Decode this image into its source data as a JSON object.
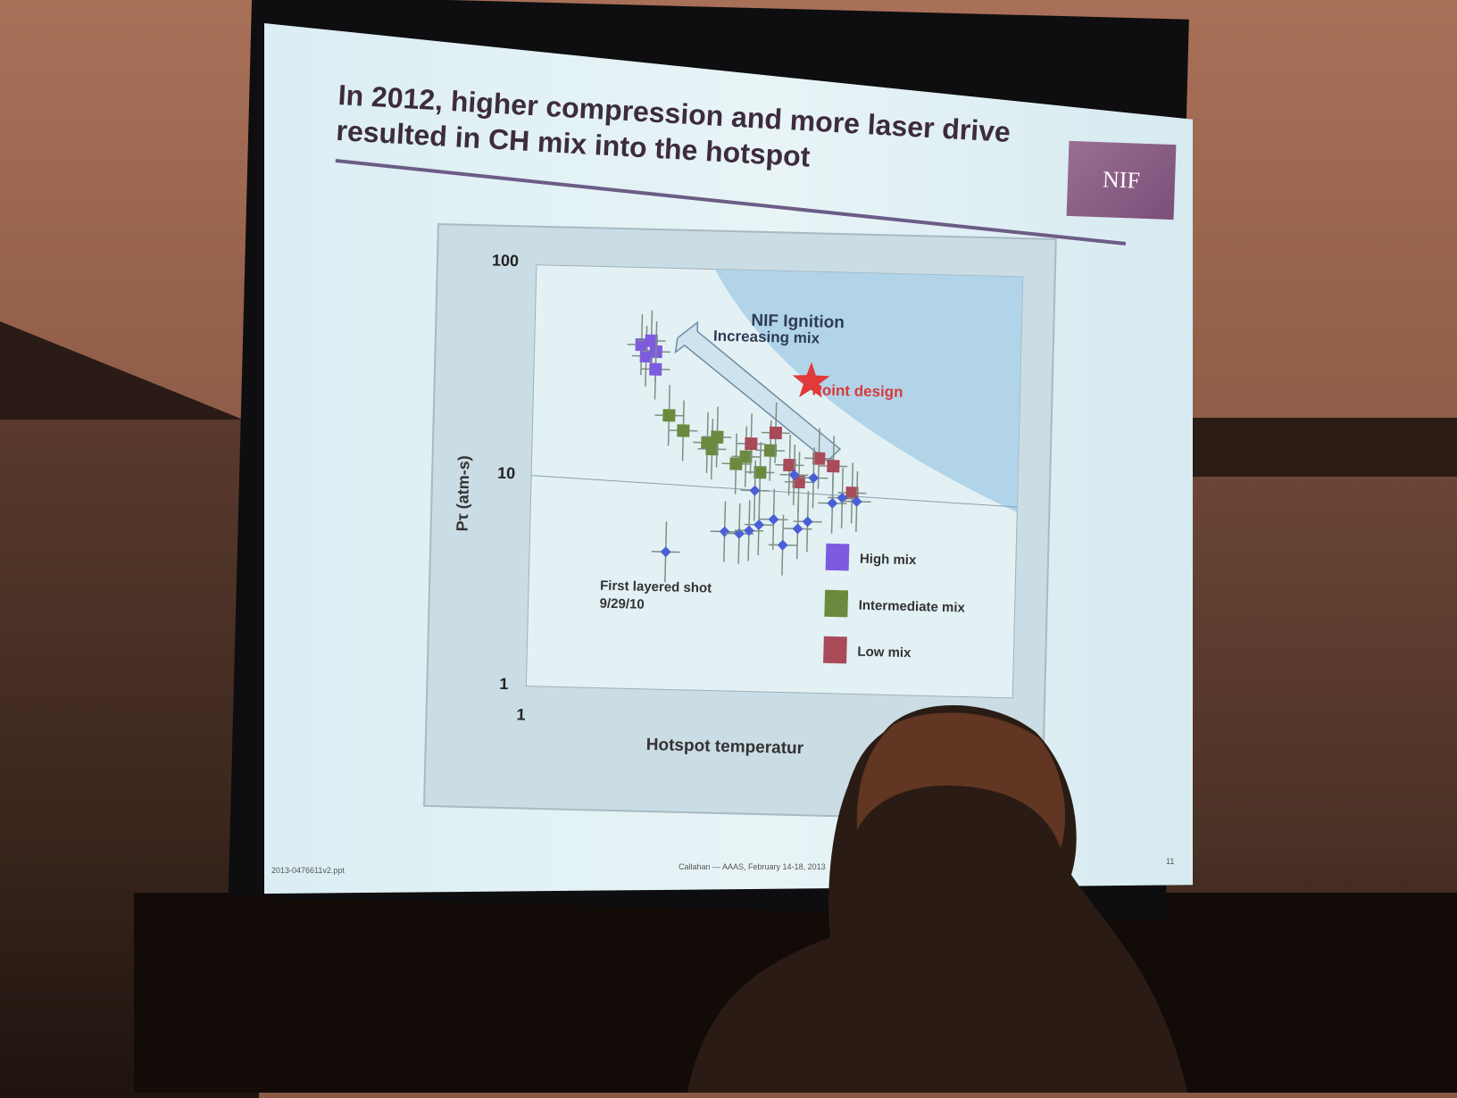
{
  "slide": {
    "title": "In 2012, higher compression and more laser drive resulted in CH mix into the hotspot",
    "logo_text": "NIF",
    "footer_left": "2013-0476611v2.ppt",
    "footer_center": "Callahan — AAAS, February 14-18, 2013",
    "footer_right": "11"
  },
  "chart_data": {
    "type": "scatter",
    "title": "",
    "xlabel": "Hotspot temperatur",
    "ylabel": "Pτ (atm-s)",
    "y_scale": "log",
    "ylim": [
      1,
      100
    ],
    "y_ticks": [
      "100",
      "10",
      "1"
    ],
    "x_ticks": [
      "1"
    ],
    "grid": "horizontal line at 10",
    "annotations": {
      "region": "NIF Ignition",
      "arrow": "Increasing mix",
      "star": "Point design",
      "first_shot_line1": "First layered shot",
      "first_shot_line2": "9/29/10"
    },
    "legend": {
      "placement": "bottom-right",
      "entries": [
        {
          "name": "High mix",
          "color": "#7d5be0"
        },
        {
          "name": "Intermediate mix",
          "color": "#6b8a3e"
        },
        {
          "name": "Low mix",
          "color": "#a84a58"
        }
      ]
    },
    "series": [
      {
        "name": "High mix",
        "color": "#7d5be0",
        "marker": "square",
        "x": [
          2.1,
          2.15,
          2.2,
          2.25,
          2.25
        ],
        "y": [
          43,
          38,
          45,
          40,
          33
        ]
      },
      {
        "name": "Intermediate mix",
        "color": "#6b8a3e",
        "marker": "square",
        "x": [
          2.4,
          2.55,
          2.8,
          2.85,
          2.9,
          3.1,
          3.2,
          3.35,
          3.45
        ],
        "y": [
          20,
          17,
          15,
          14,
          16,
          12,
          13,
          11,
          14
        ]
      },
      {
        "name": "Low mix",
        "color": "#a84a58",
        "marker": "square",
        "x": [
          3.25,
          3.5,
          3.65,
          3.75,
          3.95,
          4.1,
          4.3
        ],
        "y": [
          15,
          17,
          12,
          10,
          13,
          12,
          9
        ]
      },
      {
        "name": "",
        "color": "#4a5fd6",
        "marker": "diamond",
        "x": [
          2.4,
          3.0,
          3.15,
          3.25,
          3.35,
          3.5,
          3.6,
          3.75,
          3.85,
          3.9,
          4.1,
          4.2,
          4.35,
          3.3,
          3.7
        ],
        "y": [
          4.5,
          5.7,
          5.6,
          5.8,
          6.2,
          6.6,
          5.0,
          6.0,
          6.5,
          10.5,
          8.0,
          8.5,
          8.2,
          9.0,
          10.8
        ]
      }
    ],
    "star_point": {
      "x": 3.85,
      "y": 30
    }
  }
}
